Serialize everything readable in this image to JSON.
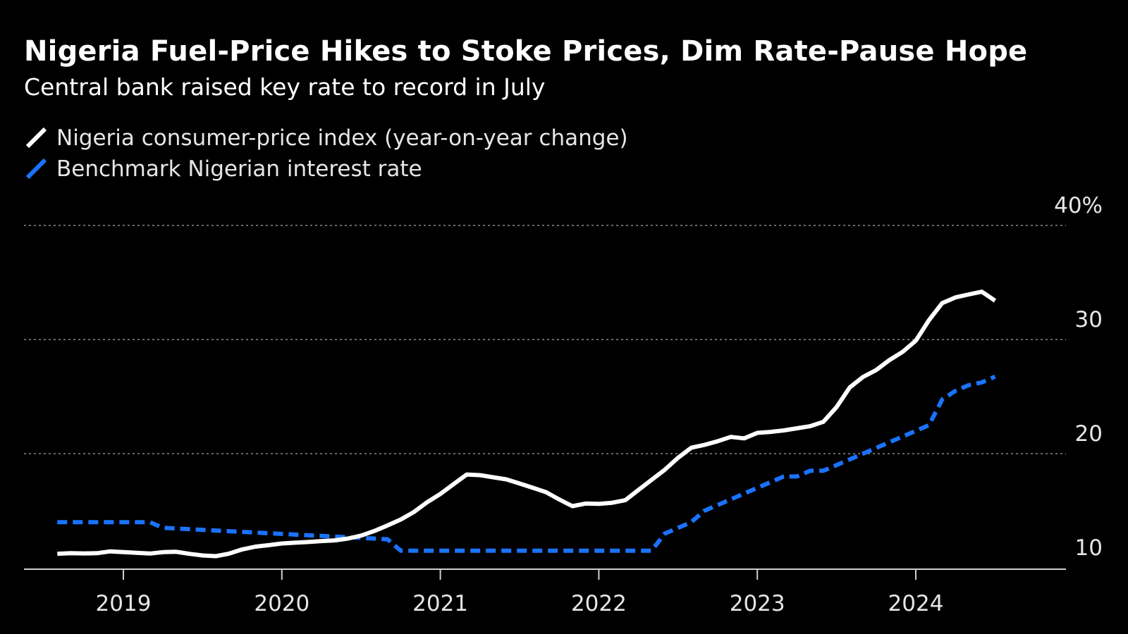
{
  "chart_data": {
    "type": "line",
    "title": "Nigeria Fuel-Price Hikes to Stoke Prices, Dim Rate-Pause Hope",
    "subtitle": "Central bank raised key rate to record in July",
    "ylim": [
      10,
      40
    ],
    "y_unit_suffix": "%",
    "y_ticks": [
      "10",
      "20",
      "30",
      "40%"
    ],
    "x_ticks": [
      "2019",
      "2020",
      "2021",
      "2022",
      "2023",
      "2024"
    ],
    "grid": true,
    "legend_position": "top-left",
    "series": [
      {
        "name": "Nigeria consumer-price index (year-on-year change)",
        "color": "#ffffff",
        "style": "solid",
        "x": [
          "2018-08",
          "2018-09",
          "2018-10",
          "2018-11",
          "2018-12",
          "2019-01",
          "2019-02",
          "2019-03",
          "2019-04",
          "2019-05",
          "2019-06",
          "2019-07",
          "2019-08",
          "2019-09",
          "2019-10",
          "2019-11",
          "2019-12",
          "2020-01",
          "2020-02",
          "2020-03",
          "2020-04",
          "2020-05",
          "2020-06",
          "2020-07",
          "2020-08",
          "2020-09",
          "2020-10",
          "2020-11",
          "2020-12",
          "2021-01",
          "2021-02",
          "2021-03",
          "2021-04",
          "2021-05",
          "2021-06",
          "2021-07",
          "2021-08",
          "2021-09",
          "2021-10",
          "2021-11",
          "2021-12",
          "2022-01",
          "2022-02",
          "2022-03",
          "2022-04",
          "2022-05",
          "2022-06",
          "2022-07",
          "2022-08",
          "2022-09",
          "2022-10",
          "2022-11",
          "2022-12",
          "2023-01",
          "2023-02",
          "2023-03",
          "2023-04",
          "2023-05",
          "2023-06",
          "2023-07",
          "2023-08",
          "2023-09",
          "2023-10",
          "2023-11",
          "2023-12",
          "2024-01",
          "2024-02",
          "2024-03",
          "2024-04",
          "2024-05",
          "2024-06",
          "2024-07"
        ],
        "values": [
          11.23,
          11.28,
          11.26,
          11.28,
          11.44,
          11.37,
          11.31,
          11.25,
          11.37,
          11.4,
          11.22,
          11.08,
          11.02,
          11.24,
          11.61,
          11.85,
          11.98,
          12.13,
          12.2,
          12.26,
          12.34,
          12.4,
          12.56,
          12.82,
          13.22,
          13.71,
          14.23,
          14.89,
          15.75,
          16.47,
          17.33,
          18.17,
          18.12,
          17.93,
          17.75,
          17.38,
          17.01,
          16.63,
          15.99,
          15.4,
          15.63,
          15.6,
          15.7,
          15.92,
          16.82,
          17.71,
          18.6,
          19.64,
          20.52,
          20.77,
          21.09,
          21.47,
          21.34,
          21.82,
          21.91,
          22.04,
          22.22,
          22.41,
          22.79,
          24.08,
          25.8,
          26.72,
          27.33,
          28.2,
          28.92,
          29.9,
          31.7,
          33.2,
          33.69,
          33.95,
          34.19,
          33.4
        ]
      },
      {
        "name": "Benchmark Nigerian interest rate",
        "color": "#1a73ff",
        "style": "dashed",
        "x": [
          "2018-08",
          "2019-03",
          "2019-04",
          "2020-09",
          "2020-10",
          "2022-05",
          "2022-06",
          "2022-07",
          "2022-08",
          "2022-09",
          "2022-10",
          "2022-11",
          "2022-12",
          "2023-01",
          "2023-02",
          "2023-03",
          "2023-04",
          "2023-05",
          "2023-06",
          "2023-07",
          "2023-08",
          "2023-09",
          "2023-10",
          "2023-11",
          "2023-12",
          "2024-01",
          "2024-02",
          "2024-03",
          "2024-04",
          "2024-05",
          "2024-06",
          "2024-07"
        ],
        "values": [
          14,
          14,
          13.5,
          12.5,
          11.5,
          11.5,
          13,
          13.5,
          14,
          15,
          15.5,
          16,
          16.5,
          17,
          17.5,
          18,
          18,
          18.5,
          18.5,
          19,
          19.5,
          20,
          20.5,
          21,
          21.5,
          22,
          22.5,
          24.75,
          25.5,
          26,
          26.25,
          26.75
        ]
      }
    ]
  }
}
